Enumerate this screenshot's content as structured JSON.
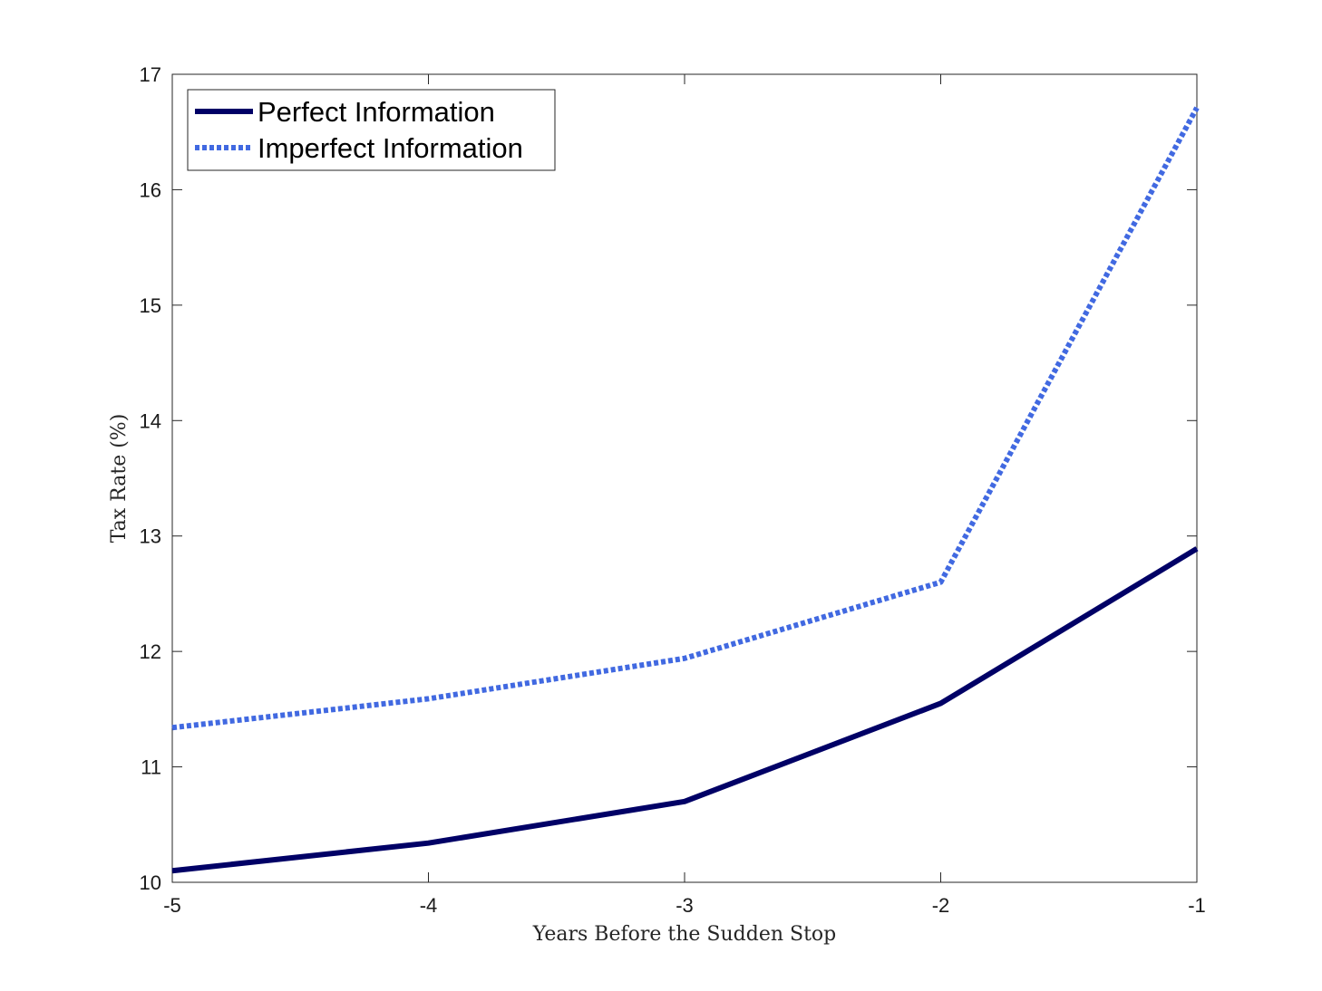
{
  "chart_data": {
    "type": "line",
    "xlabel": "Years Before the Sudden Stop",
    "ylabel": "Tax Rate (%)",
    "xlim": [
      -5,
      -1
    ],
    "ylim": [
      10,
      17
    ],
    "xticks": [
      -5,
      -4,
      -3,
      -2,
      -1
    ],
    "yticks": [
      10,
      11,
      12,
      13,
      14,
      15,
      16,
      17
    ],
    "x": [
      -5,
      -4,
      -3,
      -2,
      -1
    ],
    "grid": false,
    "legend_position": "top-left",
    "series": [
      {
        "name": "Perfect Information",
        "values": [
          10.1,
          10.34,
          10.7,
          11.55,
          12.89
        ],
        "color": "#000066",
        "style": "solid"
      },
      {
        "name": "Imperfect Information",
        "values": [
          11.34,
          11.59,
          11.94,
          12.6,
          16.71
        ],
        "color": "#4169E1",
        "style": "dotted"
      }
    ]
  }
}
